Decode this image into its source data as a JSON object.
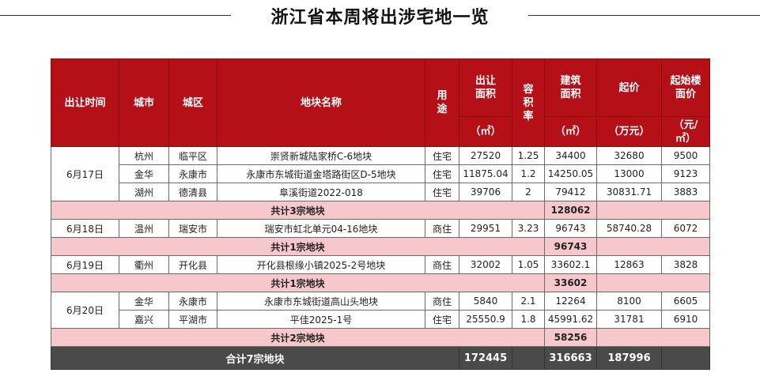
{
  "title": "浙江省本周将出涉宅地一览",
  "headers": {
    "date": "出让时间",
    "city": "城市",
    "district": "城区",
    "name": "地块名称",
    "use_line1": "用",
    "use_line2": "途",
    "area_label": "出让面积",
    "area_unit": "（㎡）",
    "far_line1": "容",
    "far_line2": "积",
    "far_line3": "率",
    "build_label": "建筑面积",
    "build_unit": "（㎡）",
    "price_label": "起价",
    "price_unit": "（万元）",
    "floor_label": "起始楼面价",
    "floor_unit": "（元/㎡）"
  },
  "groups": [
    {
      "date": "6月17日",
      "rows": [
        {
          "city": "杭州",
          "district": "临平区",
          "name": "崇贤新城陆家桥C-6地块",
          "use": "住宅",
          "area": "27520",
          "far": "1.25",
          "build": "34400",
          "price": "32680",
          "floor": "9500"
        },
        {
          "city": "金华",
          "district": "永康市",
          "name": "永康市东城街道金塔路街区D-5地块",
          "use": "住宅",
          "area": "11875.04",
          "far": "1.2",
          "build": "14250.05",
          "price": "13000",
          "floor": "9123"
        },
        {
          "city": "湖州",
          "district": "德清县",
          "name": "阜溪街道2022-018",
          "use": "住宅",
          "area": "39706",
          "far": "2",
          "build": "79412",
          "price": "30831.71",
          "floor": "3883"
        }
      ],
      "subtotal_label": "共计3宗地块",
      "subtotal_build": "128062"
    },
    {
      "date": "6月18日",
      "rows": [
        {
          "city": "温州",
          "district": "瑞安市",
          "name": "瑞安市虹北单元04-16地块",
          "use": "商住",
          "area": "29951",
          "far": "3.23",
          "build": "96743",
          "price": "58740.28",
          "floor": "6072"
        }
      ],
      "subtotal_label": "共计1宗地块",
      "subtotal_build": "96743"
    },
    {
      "date": "6月19日",
      "rows": [
        {
          "city": "衢州",
          "district": "开化县",
          "name": "开化县根缘小镇2025-2号地块",
          "use": "商住",
          "area": "32002",
          "far": "1.05",
          "build": "33602.1",
          "price": "12863",
          "floor": "3828"
        }
      ],
      "subtotal_label": "共计1宗地块",
      "subtotal_build": "33602"
    },
    {
      "date": "6月20日",
      "rows": [
        {
          "city": "金华",
          "district": "永康市",
          "name": "永康市东城街道高山头地块",
          "use": "商住",
          "area": "5840",
          "far": "2.1",
          "build": "12264",
          "price": "8100",
          "floor": "6605"
        },
        {
          "city": "嘉兴",
          "district": "平湖市",
          "name": "平佳2025-1号",
          "use": "住宅",
          "area": "25550.9",
          "far": "1.8",
          "build": "45991.62",
          "price": "31781",
          "floor": "6910"
        }
      ],
      "subtotal_label": "共计2宗地块",
      "subtotal_build": "58256"
    }
  ],
  "total": {
    "label": "合计7宗地块",
    "area": "172445",
    "build": "316663",
    "price": "187996"
  }
}
